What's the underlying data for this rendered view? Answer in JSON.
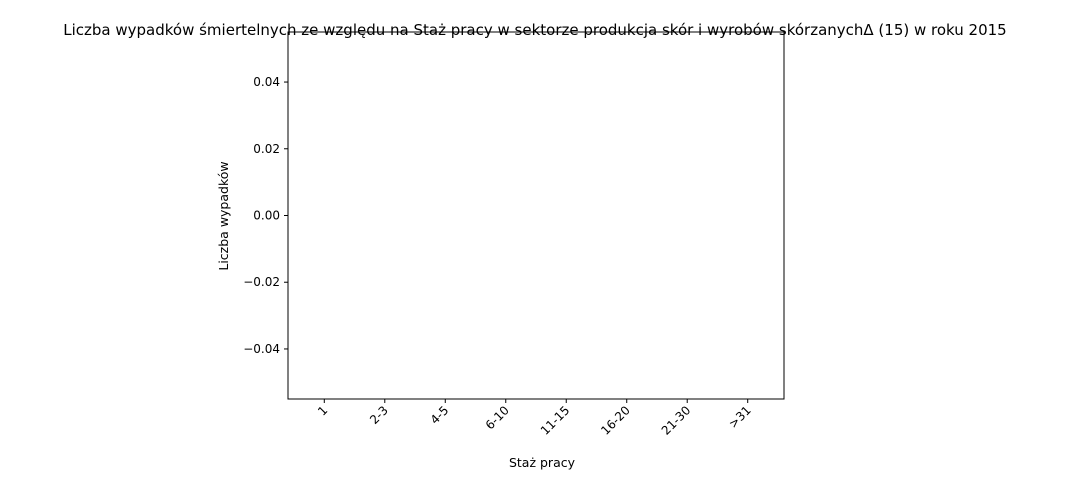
{
  "chart_data": {
    "type": "bar",
    "title": "Liczba wypadków śmiertelnych ze względu na Staż pracy w sektorze produkcja skór i wyrobów skórzanychΔ (15) w roku 2015",
    "xlabel": "Staż pracy",
    "ylabel": "Liczba wypadków",
    "categories": [
      "1",
      "2-3",
      "4-5",
      "6-10",
      "11-15",
      "16-20",
      "21-30",
      ">31"
    ],
    "values": [
      0,
      0,
      0,
      0,
      0,
      0,
      0,
      0
    ],
    "ylim": [
      -0.055,
      0.055
    ],
    "yticks": [
      -0.04,
      -0.02,
      0.0,
      0.02,
      0.04
    ],
    "ytick_labels": [
      "−0.04",
      "−0.02",
      "0.00",
      "0.02",
      "0.04"
    ],
    "grid": false,
    "colors": {
      "bar": "#1f77b4",
      "axes": "#000000",
      "background": "#ffffff"
    }
  }
}
